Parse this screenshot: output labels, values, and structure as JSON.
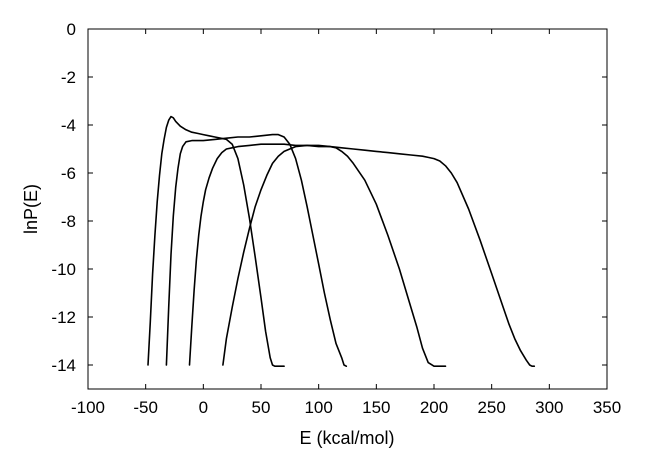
{
  "chart_data": {
    "type": "line",
    "title": "",
    "xlabel": "E (kcal/mol)",
    "ylabel": "lnP(E)",
    "xlim": [
      -100,
      350
    ],
    "ylim": [
      -15,
      0
    ],
    "xticks": [
      -100,
      -50,
      0,
      50,
      100,
      150,
      200,
      250,
      300,
      350
    ],
    "yticks": [
      0,
      -2,
      -4,
      -6,
      -8,
      -10,
      -12,
      -14
    ],
    "xtick_labels": [
      "-100",
      "-50",
      "0",
      "50",
      "100",
      "150",
      "200",
      "250",
      "300",
      "350"
    ],
    "ytick_labels": [
      "0",
      "-2",
      "-4",
      "-6",
      "-8",
      "-10",
      "-12",
      "-14"
    ],
    "grid": false,
    "legend": "none",
    "line_color": "#000000",
    "series": [
      {
        "x": [
          -48,
          -46,
          -44,
          -42,
          -40,
          -38,
          -36,
          -34,
          -32,
          -30,
          -28,
          -26,
          -24,
          -20,
          -15,
          -10,
          -5,
          0,
          5,
          10,
          15,
          20,
          25,
          30,
          35,
          40,
          45,
          50,
          54,
          58,
          60,
          62,
          65,
          70
        ],
        "y": [
          -14,
          -12.2,
          -10.2,
          -8.6,
          -7.2,
          -6.1,
          -5.2,
          -4.6,
          -4.1,
          -3.8,
          -3.65,
          -3.7,
          -3.85,
          -4.05,
          -4.2,
          -4.3,
          -4.35,
          -4.4,
          -4.45,
          -4.5,
          -4.55,
          -4.6,
          -4.8,
          -5.4,
          -6.5,
          -7.9,
          -9.5,
          -11.2,
          -12.6,
          -13.7,
          -14.0,
          -14.05,
          -14.05,
          -14.05
        ]
      },
      {
        "x": [
          -32,
          -30,
          -28,
          -26,
          -24,
          -22,
          -20,
          -18,
          -15,
          -10,
          -5,
          0,
          10,
          20,
          30,
          40,
          50,
          60,
          65,
          70,
          75,
          80,
          85,
          90,
          95,
          100,
          105,
          110,
          115,
          120,
          122,
          124
        ],
        "y": [
          -14,
          -11.6,
          -9.4,
          -7.8,
          -6.6,
          -5.8,
          -5.2,
          -4.9,
          -4.7,
          -4.65,
          -4.65,
          -4.65,
          -4.6,
          -4.55,
          -4.5,
          -4.5,
          -4.45,
          -4.4,
          -4.4,
          -4.5,
          -4.8,
          -5.4,
          -6.3,
          -7.4,
          -8.6,
          -9.8,
          -11.0,
          -12.1,
          -13.1,
          -13.7,
          -14.0,
          -14.05
        ]
      },
      {
        "x": [
          -12,
          -10,
          -8,
          -6,
          -4,
          -2,
          0,
          2,
          5,
          8,
          12,
          16,
          20,
          25,
          30,
          40,
          50,
          60,
          70,
          80,
          90,
          100,
          110,
          115,
          120,
          125,
          130,
          140,
          150,
          160,
          170,
          180,
          185,
          190,
          195,
          200,
          205,
          210
        ],
        "y": [
          -14,
          -12.4,
          -10.9,
          -9.6,
          -8.6,
          -7.8,
          -7.2,
          -6.7,
          -6.2,
          -5.8,
          -5.4,
          -5.15,
          -5.0,
          -4.95,
          -4.9,
          -4.85,
          -4.8,
          -4.8,
          -4.8,
          -4.85,
          -4.85,
          -4.9,
          -4.9,
          -4.95,
          -5.1,
          -5.3,
          -5.6,
          -6.3,
          -7.3,
          -8.6,
          -10.0,
          -11.6,
          -12.4,
          -13.3,
          -13.9,
          -14.05,
          -14.05,
          -14.05
        ]
      },
      {
        "x": [
          17,
          20,
          25,
          30,
          35,
          40,
          45,
          50,
          55,
          60,
          65,
          70,
          75,
          80,
          90,
          100,
          110,
          120,
          130,
          140,
          150,
          160,
          170,
          180,
          190,
          195,
          200,
          205,
          210,
          215,
          220,
          230,
          240,
          250,
          260,
          265,
          270,
          275,
          280,
          283,
          285,
          287
        ],
        "y": [
          -14,
          -12.9,
          -11.6,
          -10.4,
          -9.3,
          -8.3,
          -7.4,
          -6.7,
          -6.1,
          -5.6,
          -5.3,
          -5.1,
          -5.0,
          -4.9,
          -4.85,
          -4.85,
          -4.9,
          -4.95,
          -5.0,
          -5.05,
          -5.1,
          -5.15,
          -5.2,
          -5.25,
          -5.3,
          -5.35,
          -5.4,
          -5.5,
          -5.7,
          -6.0,
          -6.4,
          -7.5,
          -8.8,
          -10.2,
          -11.6,
          -12.3,
          -12.9,
          -13.4,
          -13.8,
          -14.0,
          -14.05,
          -14.05
        ]
      }
    ]
  }
}
